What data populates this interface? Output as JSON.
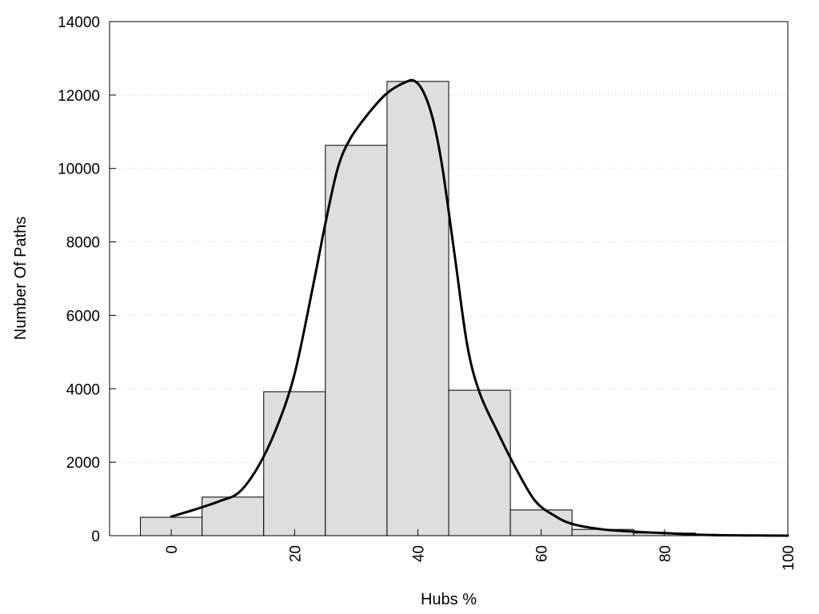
{
  "chart_data": {
    "type": "bar",
    "title": "",
    "xlabel": "Hubs %",
    "ylabel": "Number Of Paths",
    "xlim": [
      -10,
      100
    ],
    "ylim": [
      0,
      14000
    ],
    "x_ticks": [
      "0",
      "20",
      "40",
      "60",
      "80",
      "100"
    ],
    "x_tick_values": [
      0,
      20,
      40,
      60,
      80,
      100
    ],
    "y_ticks": [
      "0",
      "2000",
      "4000",
      "6000",
      "8000",
      "10000",
      "12000",
      "14000"
    ],
    "y_tick_values": [
      0,
      2000,
      4000,
      6000,
      8000,
      10000,
      12000,
      14000
    ],
    "grid": "horizontal dotted",
    "bin_width": 10,
    "bars": {
      "centers": [
        0,
        10,
        20,
        30,
        40,
        50,
        60,
        70,
        80,
        90,
        100
      ],
      "values": [
        500,
        1050,
        3920,
        10630,
        12370,
        3960,
        700,
        170,
        70,
        15,
        10
      ]
    },
    "curve": {
      "x": [
        0,
        4,
        8,
        11,
        14,
        17,
        20,
        23,
        25,
        27,
        29,
        32,
        35,
        38,
        39.5,
        41,
        42.5,
        44,
        46,
        48,
        50,
        53,
        56,
        59,
        62,
        65,
        70,
        75,
        80,
        85,
        90,
        95,
        100
      ],
      "y": [
        520,
        720,
        950,
        1180,
        1850,
        2900,
        4400,
        6800,
        8500,
        10000,
        10800,
        11500,
        12050,
        12350,
        12380,
        12050,
        11300,
        10000,
        7600,
        5200,
        3900,
        2800,
        1800,
        950,
        560,
        320,
        170,
        110,
        70,
        30,
        10,
        5,
        0
      ]
    },
    "colors": {
      "bar_fill": "#dedede",
      "stroke": "#000000",
      "grid": "#c8c8c8"
    }
  }
}
